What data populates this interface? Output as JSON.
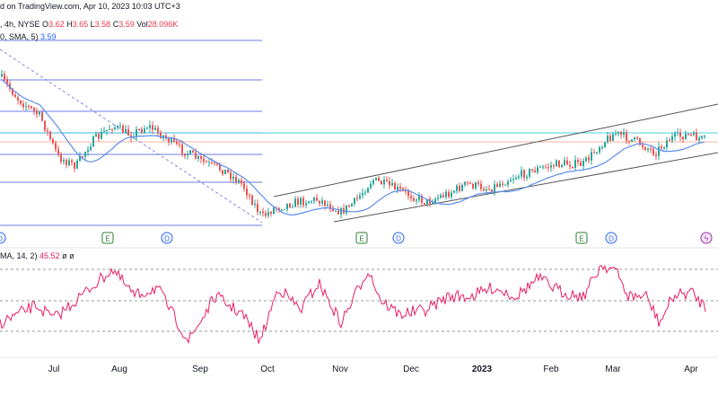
{
  "header": {
    "line1_prefix": "d on TradingView.com, Apr 10, 2023 10:03 UTC+3",
    "symbol_info": ", 4h, NYSE",
    "o_label": "O",
    "o_value": "3.62",
    "h_label": "H",
    "h_value": "3.65",
    "l_label": "L",
    "l_value": "3.58",
    "c_label": "C",
    "c_value": "3.59",
    "vol_label": "Vol",
    "vol_value": "28.096K",
    "sma_label": "0, SMA, 5)",
    "sma_value": "3.59"
  },
  "rsi_header": {
    "label": "MA, 14, 2)",
    "value": "45.52",
    "extra": "ø  ø"
  },
  "event_markers": [
    {
      "text": "E",
      "kind": "earnings",
      "x_date": "Aug"
    },
    {
      "text": "D",
      "kind": "dividend",
      "x_date": "Aug-Sep"
    },
    {
      "text": "D",
      "kind": "dividend",
      "x_date": "Jun"
    },
    {
      "text": "E",
      "kind": "earnings",
      "x_date": "Nov"
    },
    {
      "text": "D",
      "kind": "dividend",
      "x_date": "Nov"
    },
    {
      "text": "E",
      "kind": "earnings",
      "x_date": "Feb"
    },
    {
      "text": "D",
      "kind": "dividend",
      "x_date": "Mar"
    },
    {
      "text": "ϟ",
      "kind": "split",
      "x_date": "Apr"
    }
  ],
  "chart_data": {
    "type": "candlestick",
    "xaxis_ticks": [
      "Jul",
      "Aug",
      "Sep",
      "Oct",
      "Nov",
      "Dec",
      "2023",
      "Feb",
      "Mar",
      "Apr"
    ],
    "price_trend": {
      "downtrend_segment": "Jun to late Sep (falling)",
      "uptrend_channel": "Oct 2022 to Apr 2023 (rising parallel channel)"
    },
    "fib_levels_count": 7,
    "rsi": {
      "period": 14,
      "last_value": 45.52,
      "bands": [
        70,
        50,
        30
      ]
    },
    "grid": false
  },
  "colors": {
    "up": "#26a69a",
    "down": "#ef5350",
    "sma": "#5b8def",
    "fib": "#4a5be0",
    "rsi": "#e91e63",
    "channel": "#555555",
    "accent_hline": "#26c6da",
    "price_hline": "#f5a38a"
  }
}
